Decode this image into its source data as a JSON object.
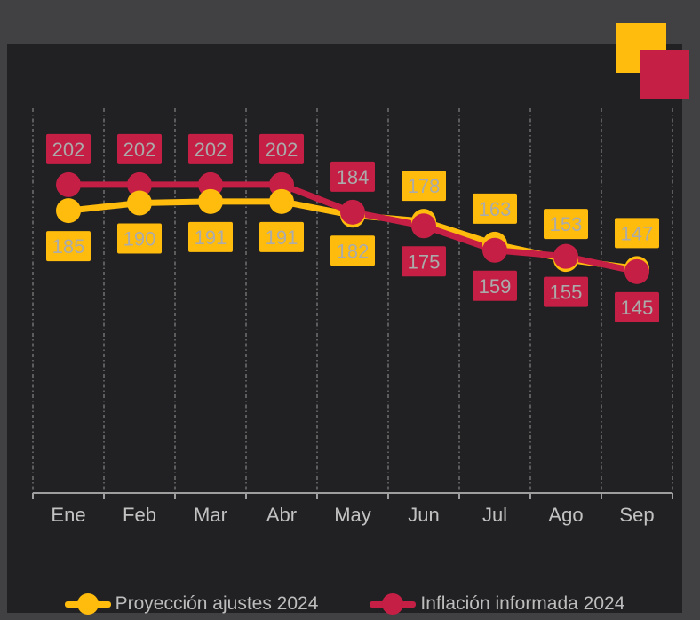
{
  "page": {
    "background_color": "#414144",
    "panel_background_color": "#212123"
  },
  "decor": {
    "yellow_square_color": "#FFBC0D",
    "red_square_color": "#C51F45"
  },
  "chart_data": {
    "type": "line",
    "categories": [
      "Ene",
      "Feb",
      "Mar",
      "Abr",
      "May",
      "Jun",
      "Jul",
      "Ago",
      "Sep"
    ],
    "series": [
      {
        "name": "Proyección ajustes 2024",
        "color": "#FFBC0D",
        "values": [
          185,
          190,
          191,
          191,
          182,
          178,
          163,
          153,
          147
        ],
        "label_position": [
          "below",
          "below",
          "below",
          "below",
          "below",
          "above",
          "above",
          "above",
          "above"
        ]
      },
      {
        "name": "Inflación informada 2024",
        "color": "#C51F45",
        "values": [
          202,
          202,
          202,
          202,
          184,
          175,
          159,
          155,
          145
        ],
        "label_position": [
          "above",
          "above",
          "above",
          "above",
          "above",
          "below",
          "below",
          "below",
          "below"
        ]
      }
    ],
    "title": "",
    "xlabel": "",
    "ylabel": "",
    "ylim": [
      0,
      252
    ],
    "grid": "vertical-dashed",
    "legend_position": "bottom",
    "data_labels": "boxed",
    "colors": {
      "gridline": "#5C5C5C",
      "axis": "#9E9E9E",
      "axis_text": "#C2C2C2",
      "label_text": "#ABABAB"
    }
  }
}
